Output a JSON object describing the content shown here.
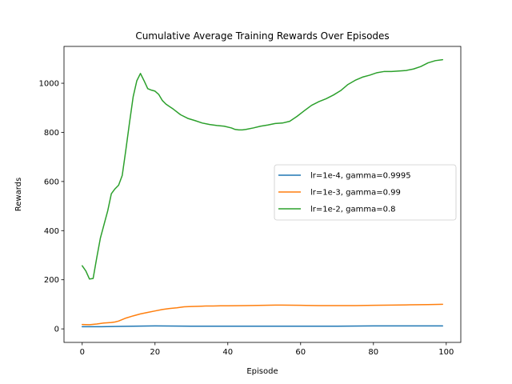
{
  "chart_data": {
    "type": "line",
    "title": "Cumulative Average Training Rewards Over Episodes",
    "xlabel": "Episode",
    "ylabel": "Rewards",
    "xlim": [
      -5,
      104
    ],
    "ylim": [
      -55,
      1150
    ],
    "xticks": [
      0,
      20,
      40,
      60,
      80,
      100
    ],
    "yticks": [
      0,
      200,
      400,
      600,
      800,
      1000
    ],
    "grid": false,
    "legend_position": "center-right",
    "series": [
      {
        "name": "lr=1e-4, gamma=0.9995",
        "color": "#1f77b4",
        "x": [
          0,
          5,
          10,
          20,
          30,
          40,
          50,
          60,
          70,
          80,
          90,
          99
        ],
        "y": [
          9,
          9,
          10,
          12,
          11,
          11,
          11,
          11,
          11,
          12,
          12,
          12
        ]
      },
      {
        "name": "lr=1e-3, gamma=0.99",
        "color": "#ff7f0e",
        "x": [
          0,
          2,
          4,
          6,
          8,
          9,
          10,
          12,
          14,
          16,
          18,
          20,
          22,
          24,
          26,
          28,
          30,
          32,
          34,
          36,
          38,
          40,
          45,
          50,
          53,
          55,
          60,
          65,
          70,
          75,
          80,
          85,
          90,
          95,
          99
        ],
        "y": [
          18,
          17,
          20,
          24,
          26,
          28,
          32,
          44,
          53,
          61,
          67,
          73,
          79,
          83,
          86,
          90,
          91,
          92,
          93,
          93,
          94,
          94,
          95,
          96,
          97,
          97,
          96,
          95,
          95,
          95,
          96,
          97,
          98,
          99,
          100
        ]
      },
      {
        "name": "lr=1e-2, gamma=0.8",
        "color": "#2ca02c",
        "x": [
          0,
          1,
          2,
          3,
          4,
          5,
          6,
          7,
          8,
          9,
          10,
          11,
          12,
          13,
          14,
          15,
          16,
          17,
          18,
          19,
          20,
          21,
          22,
          23,
          24,
          25,
          27,
          29,
          31,
          33,
          35,
          37,
          39,
          41,
          42,
          43,
          44,
          45,
          47,
          49,
          51,
          53,
          55,
          57,
          59,
          61,
          63,
          65,
          67,
          69,
          71,
          73,
          75,
          77,
          79,
          81,
          83,
          85,
          87,
          89,
          91,
          93,
          95,
          97,
          99
        ],
        "y": [
          257,
          236,
          203,
          205,
          290,
          370,
          425,
          480,
          550,
          570,
          585,
          625,
          730,
          840,
          945,
          1010,
          1040,
          1010,
          978,
          972,
          968,
          955,
          930,
          915,
          905,
          895,
          872,
          857,
          848,
          838,
          832,
          828,
          825,
          818,
          812,
          810,
          810,
          812,
          818,
          825,
          830,
          836,
          838,
          845,
          865,
          888,
          910,
          925,
          937,
          952,
          970,
          995,
          1012,
          1025,
          1033,
          1043,
          1048,
          1048,
          1050,
          1052,
          1058,
          1068,
          1083,
          1092,
          1096
        ]
      }
    ]
  }
}
